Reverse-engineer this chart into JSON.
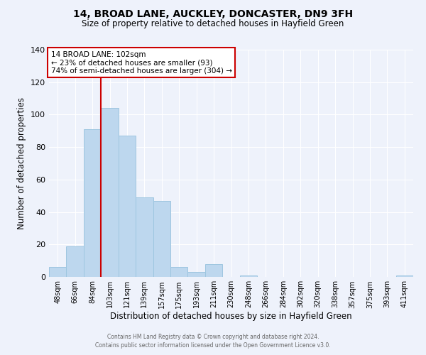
{
  "title1": "14, BROAD LANE, AUCKLEY, DONCASTER, DN9 3FH",
  "title2": "Size of property relative to detached houses in Hayfield Green",
  "xlabel": "Distribution of detached houses by size in Hayfield Green",
  "ylabel": "Number of detached properties",
  "bin_labels": [
    "48sqm",
    "66sqm",
    "84sqm",
    "103sqm",
    "121sqm",
    "139sqm",
    "157sqm",
    "175sqm",
    "193sqm",
    "211sqm",
    "230sqm",
    "248sqm",
    "266sqm",
    "284sqm",
    "302sqm",
    "320sqm",
    "338sqm",
    "357sqm",
    "375sqm",
    "393sqm",
    "411sqm"
  ],
  "bin_values": [
    6,
    19,
    91,
    104,
    87,
    49,
    47,
    6,
    3,
    8,
    0,
    1,
    0,
    0,
    0,
    0,
    0,
    0,
    0,
    0,
    1
  ],
  "bar_color": "#bdd7ee",
  "bar_edge_color": "#9ec6e0",
  "background_color": "#eef2fb",
  "grid_color": "#ffffff",
  "marker_line_color": "#cc0000",
  "annotation_box_text": "14 BROAD LANE: 102sqm\n← 23% of detached houses are smaller (93)\n74% of semi-detached houses are larger (304) →",
  "annotation_box_edge_color": "#cc0000",
  "ylim": [
    0,
    140
  ],
  "yticks": [
    0,
    20,
    40,
    60,
    80,
    100,
    120,
    140
  ],
  "footer1": "Contains HM Land Registry data © Crown copyright and database right 2024.",
  "footer2": "Contains public sector information licensed under the Open Government Licence v3.0."
}
